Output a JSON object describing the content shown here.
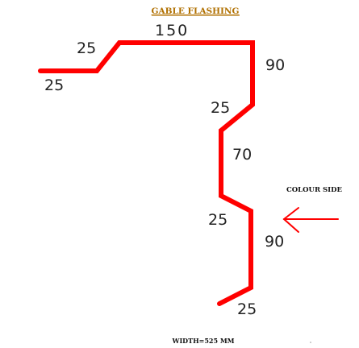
{
  "title": "GABLE FLASHING",
  "side_label": "COLOUR SIDE",
  "width_label": "WIDTH=525 MM",
  "dimensions": {
    "d_left_flange": "25",
    "d_left_rise": "25",
    "d_top": "150",
    "d_right_drop": "90",
    "d_kick_in": "25",
    "d_middle": "70",
    "d_kick_out": "25",
    "d_lower_drop": "90",
    "d_return": "25"
  },
  "colors": {
    "profile": "#ff0000",
    "text": "#222222",
    "title": "#b07000"
  }
}
